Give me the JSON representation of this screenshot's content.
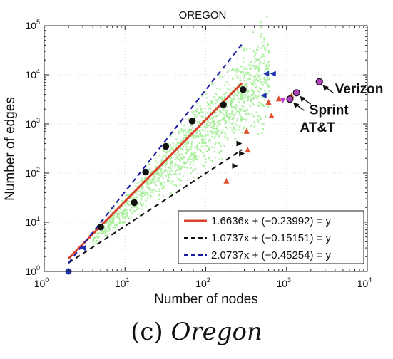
{
  "chart_data": {
    "type": "scatter",
    "title": "OREGON",
    "xlabel": "Number of nodes",
    "ylabel": "Number of edges",
    "xscale": "log",
    "yscale": "log",
    "xlim": [
      1,
      10000
    ],
    "ylim": [
      1,
      100000
    ],
    "xticks": [
      {
        "base": "10",
        "exp": "0"
      },
      {
        "base": "10",
        "exp": "1"
      },
      {
        "base": "10",
        "exp": "2"
      },
      {
        "base": "10",
        "exp": "3"
      },
      {
        "base": "10",
        "exp": "4"
      }
    ],
    "yticks": [
      {
        "base": "10",
        "exp": "0"
      },
      {
        "base": "10",
        "exp": "1"
      },
      {
        "base": "10",
        "exp": "2"
      },
      {
        "base": "10",
        "exp": "3"
      },
      {
        "base": "10",
        "exp": "4"
      },
      {
        "base": "10",
        "exp": "5"
      }
    ],
    "grid": true,
    "legend_position": "bottom-right",
    "lines": [
      {
        "label": "1.6636x + (−0.23992) = y",
        "slope": 1.6636,
        "intercept": -0.23992,
        "x_range": [
          2,
          280
        ],
        "color": "#d9412b",
        "style": "solid"
      },
      {
        "label": "1.0737x + (−0.15151) = y",
        "slope": 1.0737,
        "intercept": -0.15151,
        "x_range": [
          2,
          280
        ],
        "color": "#111111",
        "style": "dashed"
      },
      {
        "label": "2.0737x + (−0.45254) = y",
        "slope": 2.0737,
        "intercept": -0.45254,
        "x_range": [
          2,
          280
        ],
        "color": "#1a1aa6",
        "style": "dashed"
      }
    ],
    "binned_means": [
      [
        5,
        8
      ],
      [
        13,
        25
      ],
      [
        18,
        105
      ],
      [
        32,
        350
      ],
      [
        68,
        1150
      ],
      [
        165,
        2450
      ],
      [
        290,
        5000
      ]
    ],
    "outliers": {
      "red_triangles": [
        [
          180,
          70
        ],
        [
          320,
          720
        ],
        [
          330,
          300
        ],
        [
          600,
          2800
        ],
        [
          650,
          1500
        ],
        [
          800,
          3300
        ],
        [
          1150,
          3800
        ]
      ],
      "black_triangles": [
        [
          230,
          140
        ],
        [
          260,
          400
        ],
        [
          280,
          250
        ]
      ],
      "blue_triangles": [
        [
          3,
          3
        ],
        [
          520,
          3800
        ],
        [
          560,
          10500
        ],
        [
          680,
          10500
        ]
      ],
      "magenta_triangles": [
        [
          900,
          3000
        ]
      ],
      "origin_point": [
        2,
        1
      ]
    },
    "annotations": [
      {
        "label": "Verizon",
        "x": 2550,
        "y": 7200
      },
      {
        "label": "Sprint",
        "x": 1330,
        "y": 4300
      },
      {
        "label": "AT&T",
        "x": 1100,
        "y": 3200
      }
    ],
    "colors": {
      "scatter": "#a8ef9c",
      "fit": "#d9412b",
      "lower": "#111111",
      "upper": "#1a1aa6",
      "highlight": "#b13fc0"
    }
  },
  "caption": {
    "label": "(c)",
    "name": "Oregon"
  }
}
